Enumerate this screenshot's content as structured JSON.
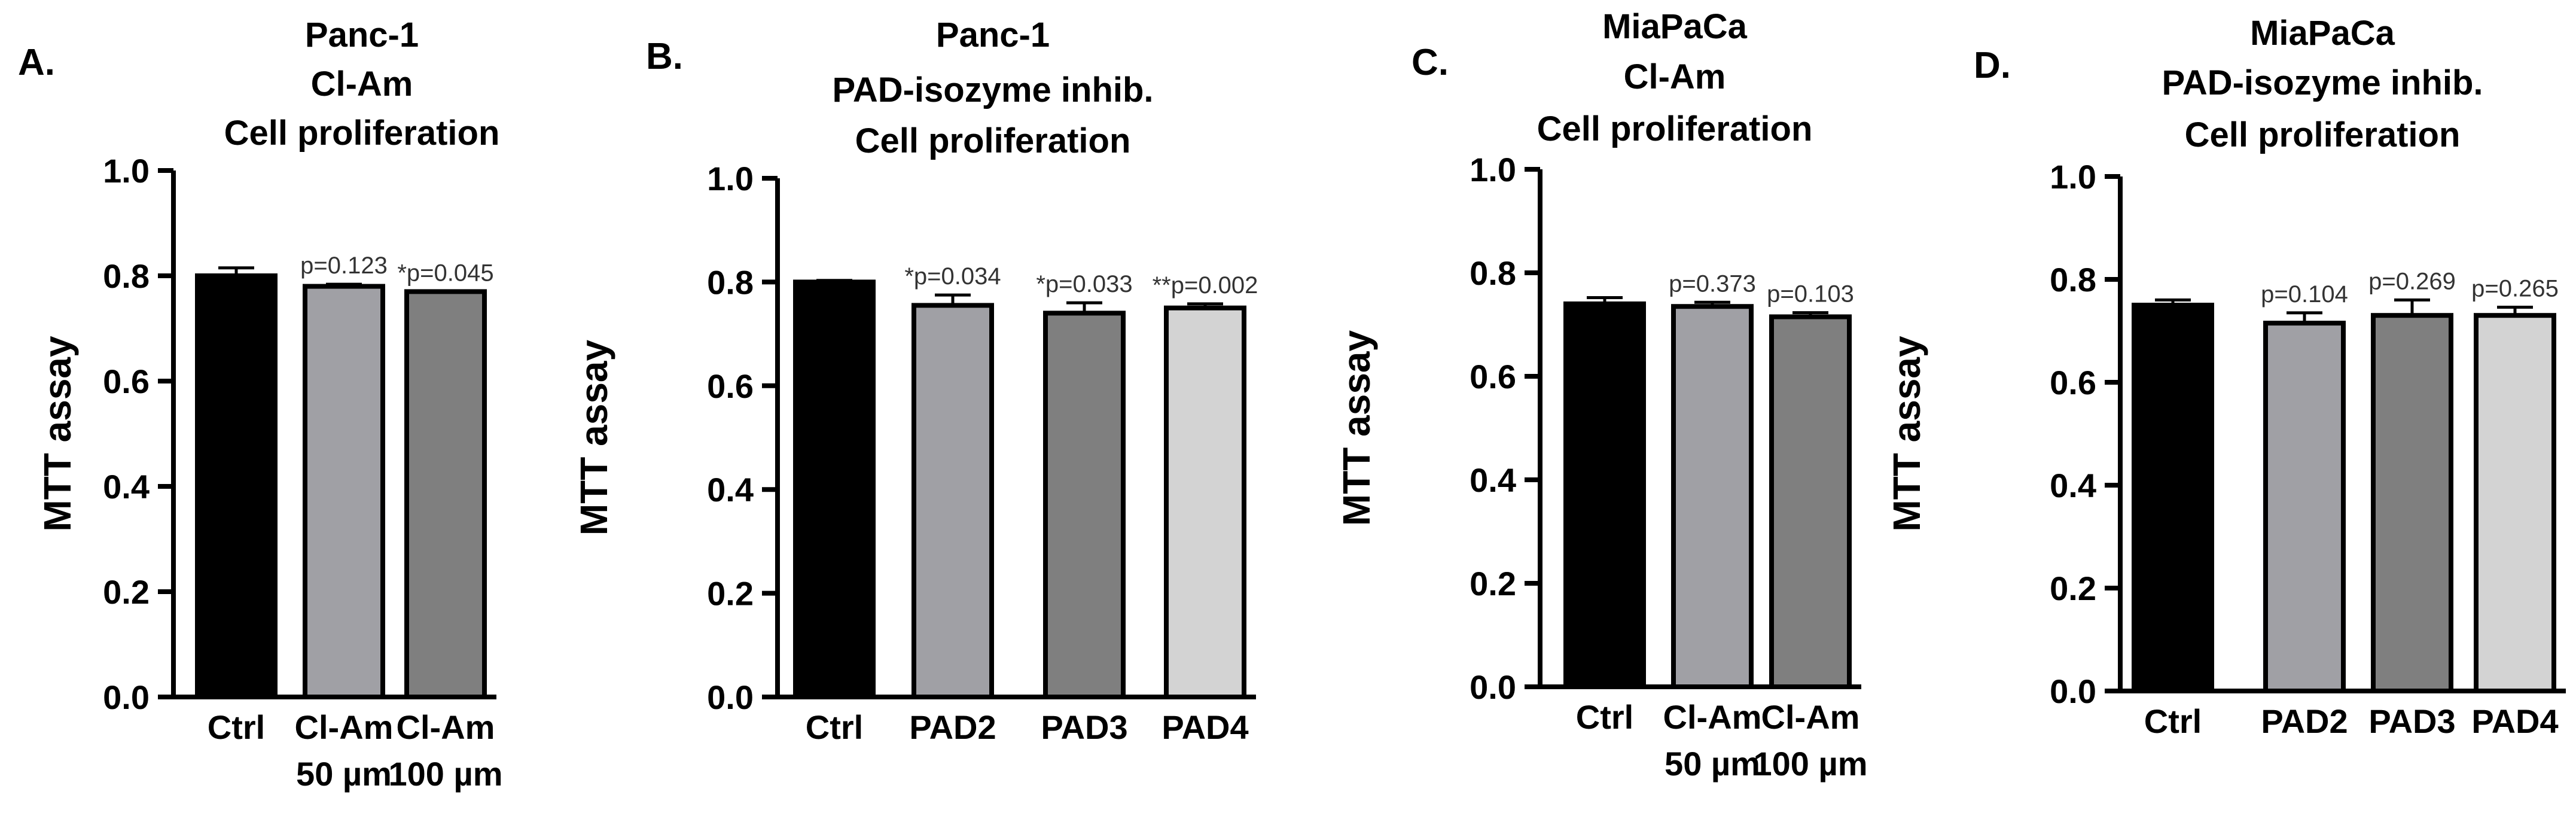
{
  "chart_data": [
    {
      "type": "bar",
      "panel": "A.",
      "title": [
        "Panc-1",
        "Cl-Am",
        "Cell proliferation"
      ],
      "ylabel": "MTT assay",
      "ylim": [
        0,
        1.0
      ],
      "yticks": [
        "0.0",
        "0.2",
        "0.4",
        "0.6",
        "0.8",
        "1.0"
      ],
      "categories": [
        [
          "Ctrl"
        ],
        [
          "Cl-Am",
          "50 µm"
        ],
        [
          "Cl-Am",
          "100 µm"
        ]
      ],
      "values": [
        0.8,
        0.78,
        0.77
      ],
      "errors": [
        0.015,
        0.004,
        0.0
      ],
      "annotations": [
        "",
        "p=0.123",
        "*p=0.045"
      ],
      "colors": [
        "#000000",
        "#a0a0a5",
        "#7f7f7f"
      ]
    },
    {
      "type": "bar",
      "panel": "B.",
      "title": [
        "Panc-1",
        "PAD-isozyme  inhib.",
        "Cell proliferation"
      ],
      "ylabel": "MTT assay",
      "ylim": [
        0,
        1.0
      ],
      "yticks": [
        "0.0",
        "0.2",
        "0.4",
        "0.6",
        "0.8",
        "1.0"
      ],
      "categories": [
        [
          "Ctrl"
        ],
        [
          "PAD2"
        ],
        [
          "PAD3"
        ],
        [
          "PAD4"
        ]
      ],
      "values": [
        0.8,
        0.755,
        0.74,
        0.75
      ],
      "errors": [
        0.003,
        0.02,
        0.02,
        0.008
      ],
      "annotations": [
        "",
        "*p=0.034",
        "*p=0.033",
        "**p=0.002"
      ],
      "colors": [
        "#000000",
        "#a0a0a5",
        "#7f7f7f",
        "#d3d3d3"
      ]
    },
    {
      "type": "bar",
      "panel": "C.",
      "title": [
        "MiaPaCa",
        "Cl-Am",
        "Cell proliferation"
      ],
      "ylabel": "MTT assay",
      "ylim": [
        0,
        1.0
      ],
      "yticks": [
        "0.0",
        "0.2",
        "0.4",
        "0.6",
        "0.8",
        "1.0"
      ],
      "categories": [
        [
          "Ctrl"
        ],
        [
          "Cl-Am",
          "50 µm"
        ],
        [
          "Cl-Am",
          "100 µm"
        ]
      ],
      "values": [
        0.74,
        0.735,
        0.715
      ],
      "errors": [
        0.012,
        0.008,
        0.008
      ],
      "annotations": [
        "",
        "p=0.373",
        "p=0.103"
      ],
      "colors": [
        "#000000",
        "#a0a0a5",
        "#7f7f7f"
      ]
    },
    {
      "type": "bar",
      "panel": "D.",
      "title": [
        "MiaPaCa",
        "PAD-isozyme  inhib.",
        "Cell proliferation"
      ],
      "ylabel": "MTT assay",
      "ylim": [
        0,
        1.0
      ],
      "yticks": [
        "0.0",
        "0.2",
        "0.4",
        "0.6",
        "0.8",
        "1.0"
      ],
      "categories": [
        [
          "Ctrl"
        ],
        [
          "PAD2"
        ],
        [
          "PAD3"
        ],
        [
          "PAD4"
        ]
      ],
      "values": [
        0.75,
        0.715,
        0.73,
        0.73
      ],
      "errors": [
        0.01,
        0.02,
        0.03,
        0.016
      ],
      "annotations": [
        "",
        "p=0.104",
        "p=0.269",
        "p=0.265"
      ],
      "colors": [
        "#000000",
        "#a0a0a5",
        "#7f7f7f",
        "#d3d3d3"
      ]
    }
  ]
}
